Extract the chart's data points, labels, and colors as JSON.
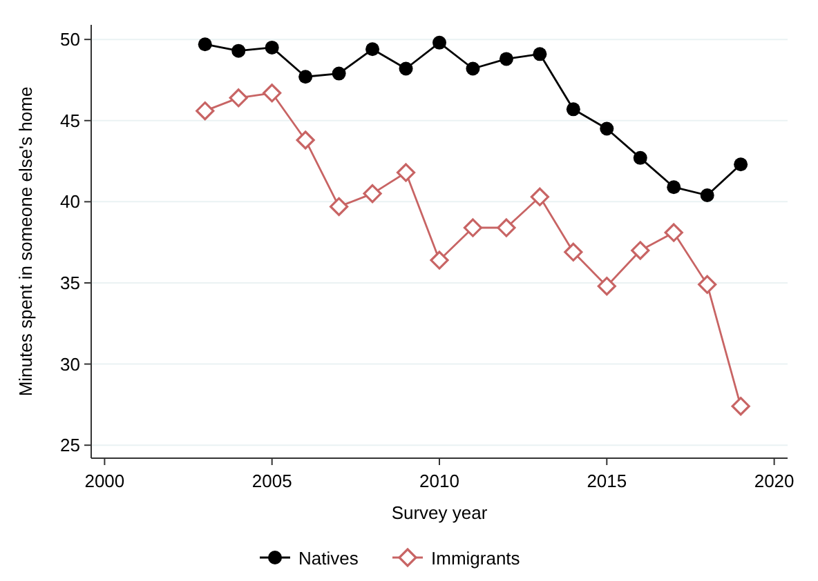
{
  "chart_data": {
    "type": "line",
    "xlabel": "Survey year",
    "ylabel": "Minutes spent in someone else's home",
    "x": [
      2003,
      2004,
      2005,
      2006,
      2007,
      2008,
      2009,
      2010,
      2011,
      2012,
      2013,
      2014,
      2015,
      2016,
      2017,
      2018,
      2019
    ],
    "series": [
      {
        "name": "Natives",
        "color": "#000000",
        "marker": "circle",
        "values": [
          49.7,
          49.3,
          49.5,
          47.7,
          47.9,
          49.4,
          48.2,
          49.8,
          48.2,
          48.8,
          49.1,
          45.7,
          44.5,
          42.7,
          40.9,
          40.4,
          42.3
        ]
      },
      {
        "name": "Immigrants",
        "color": "#c86464",
        "marker": "diamond",
        "values": [
          45.6,
          46.4,
          46.7,
          43.8,
          39.7,
          40.5,
          41.8,
          36.4,
          38.4,
          38.4,
          40.3,
          36.9,
          34.8,
          37.0,
          38.1,
          34.9,
          27.4
        ]
      }
    ],
    "xlim": [
      1999.6,
      2020.4
    ],
    "xticks": [
      2000,
      2005,
      2010,
      2015,
      2020
    ],
    "ylim": [
      24.2,
      50.9
    ],
    "yticks": [
      25,
      30,
      35,
      40,
      45,
      50
    ],
    "grid": "y",
    "legend": "bottom",
    "line_style": "solid"
  }
}
